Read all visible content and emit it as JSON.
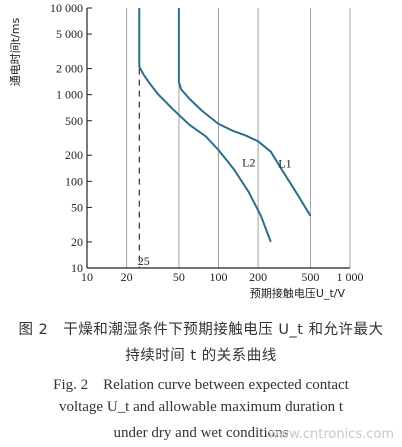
{
  "chart_data": {
    "type": "line",
    "title": "",
    "xlabel": "预期接触电压U_t/V",
    "ylabel": "通电时间t/ms",
    "xscale": "log",
    "yscale": "log",
    "xlim": [
      10,
      1000
    ],
    "ylim": [
      10,
      10000
    ],
    "x_ticks": [
      10,
      20,
      50,
      100,
      200,
      500,
      1000
    ],
    "x_tick_labels": [
      "10",
      "20",
      "50",
      "100",
      "200",
      "500",
      "1 000"
    ],
    "y_ticks": [
      10,
      20,
      50,
      100,
      200,
      500,
      1000,
      2000,
      5000,
      10000
    ],
    "y_tick_labels": [
      "10",
      "20",
      "50",
      "100",
      "200",
      "500",
      "1 000",
      "2 000",
      "5 000",
      "10 000"
    ],
    "grid": true,
    "legend": "none",
    "series": [
      {
        "name": "L1",
        "x": [
          50,
          50,
          52,
          60,
          75,
          100,
          130,
          160,
          200,
          250,
          300,
          400,
          500
        ],
        "y": [
          10000,
          1400,
          1150,
          900,
          650,
          460,
          380,
          340,
          290,
          220,
          140,
          70,
          40
        ]
      },
      {
        "name": "L2",
        "x": [
          25,
          25,
          27,
          30,
          35,
          45,
          60,
          80,
          100,
          130,
          170,
          210,
          250
        ],
        "y": [
          10000,
          2100,
          1700,
          1350,
          1000,
          680,
          450,
          330,
          230,
          140,
          75,
          40,
          20
        ]
      }
    ],
    "annotations": [
      {
        "text": "L1",
        "x": 320,
        "y": 160
      },
      {
        "text": "L2",
        "x": 170,
        "y": 165
      },
      {
        "text": "25",
        "x": 27,
        "y": 12
      },
      {
        "text": "dashed line at x = 25",
        "x": 25
      }
    ]
  },
  "caption": {
    "zh_line1": "图 2　干燥和潮湿条件下预期接触电压 U_t 和允许最大",
    "zh_line2": "持续时间 t 的关系曲线",
    "en_line1": "Fig. 2　Relation curve between expected contact",
    "en_line2": "voltage U_t and allowable maximum duration t",
    "en_line3": "under dry and wet conditions"
  },
  "watermark": "www.cntronics.com",
  "colors": {
    "curve": "#2c6f8c",
    "grid": "#a0a0a0",
    "axis": "#222222"
  }
}
